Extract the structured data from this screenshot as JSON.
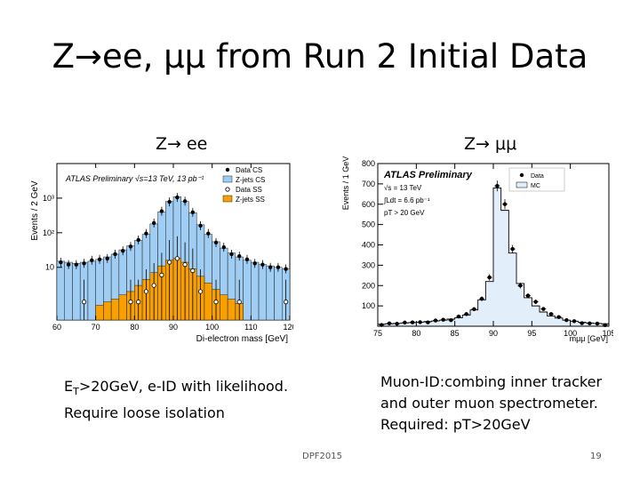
{
  "title": {
    "prefix": "Z",
    "arrow": "→",
    "rest": "ee, μμ from Run 2 Initial Data"
  },
  "left_panel": {
    "subtitle": "Z→ ee"
  },
  "right_panel": {
    "subtitle": "Z→ μμ"
  },
  "text_left": {
    "line1_prefix": "E",
    "line1_sub": "T",
    "line1_rest": ">20GeV, e-ID with likelihood.",
    "line2": "Require loose isolation"
  },
  "text_right": {
    "line1": "Muon-ID:combing inner tracker",
    "line2": "and outer muon spectrometer.",
    "line3": "Required: pT>20GeV"
  },
  "footer": {
    "center": "DPF2015",
    "page": "19"
  },
  "colors": {
    "zjets_cs": "#9fcdf3",
    "zjets_ss": "#f7a000",
    "mc": "#e2effb"
  },
  "chart_data": [
    {
      "type": "bar",
      "ylabel": "Events / 2 GeV",
      "xlabel": "Di-electron mass [GeV]",
      "annotation": "ATLAS Preliminary √s=13 TeV, 13 pb⁻¹",
      "legend": [
        "Data CS",
        "Z-jets CS",
        "Data SS",
        "Z-jets SS"
      ],
      "yscale": "log",
      "xlim": [
        60,
        120
      ],
      "ylim": [
        0.3,
        10000
      ],
      "x_ticks": [
        60,
        70,
        80,
        90,
        100,
        110,
        120
      ],
      "y_ticks": [
        "10",
        "10²",
        "10³"
      ],
      "bin_edges": [
        60,
        62,
        64,
        66,
        68,
        70,
        72,
        74,
        76,
        78,
        80,
        82,
        84,
        86,
        88,
        90,
        92,
        94,
        96,
        98,
        100,
        102,
        104,
        106,
        108,
        110,
        112,
        114,
        116,
        118,
        120
      ],
      "series": [
        {
          "name": "Z-jets CS",
          "values": [
            15,
            14,
            13,
            14,
            15,
            17,
            20,
            24,
            32,
            42,
            60,
            90,
            180,
            400,
            800,
            1100,
            800,
            380,
            170,
            90,
            55,
            36,
            26,
            20,
            16,
            14,
            12,
            11,
            10,
            9
          ]
        },
        {
          "name": "Z-jets SS",
          "values": [
            0,
            0,
            0,
            0,
            0,
            0.8,
            1,
            1.2,
            1.6,
            2,
            3,
            4.5,
            7,
            11,
            16,
            18,
            14,
            9,
            5.5,
            3.5,
            2.3,
            1.6,
            1.2,
            0.9,
            0,
            0,
            0,
            0,
            0,
            0
          ]
        },
        {
          "name": "Data CS",
          "values": [
            14,
            12,
            12,
            13,
            16,
            17,
            18,
            24,
            30,
            40,
            62,
            95,
            190,
            420,
            780,
            1050,
            820,
            390,
            160,
            95,
            52,
            38,
            24,
            21,
            17,
            13,
            12,
            10,
            10,
            9
          ]
        },
        {
          "name": "Data SS",
          "values": [
            null,
            null,
            null,
            1,
            null,
            null,
            null,
            null,
            null,
            1,
            1,
            2,
            3,
            6,
            14,
            18,
            12,
            8,
            2,
            null,
            1,
            null,
            null,
            1,
            null,
            null,
            null,
            null,
            null,
            1
          ]
        }
      ]
    },
    {
      "type": "bar",
      "ylabel": "Events / 1 GeV",
      "xlabel": "mμμ [GeV]",
      "annotation_title": "ATLAS Preliminary",
      "annotation_lines": [
        "√s = 13 TeV",
        "∫Ldt = 6.6 pb⁻¹",
        "pT > 20 GeV"
      ],
      "legend": [
        "Data",
        "MC"
      ],
      "xlim": [
        75,
        105
      ],
      "ylim": [
        0,
        800
      ],
      "x_ticks": [
        75,
        80,
        85,
        90,
        95,
        100,
        105
      ],
      "y_ticks": [
        100,
        200,
        300,
        400,
        500,
        600,
        700,
        800
      ],
      "bin_edges": [
        75,
        76,
        77,
        78,
        79,
        80,
        81,
        82,
        83,
        84,
        85,
        86,
        87,
        88,
        89,
        90,
        91,
        92,
        93,
        94,
        95,
        96,
        97,
        98,
        99,
        100,
        101,
        102,
        103,
        104,
        105
      ],
      "series": [
        {
          "name": "MC",
          "values": [
            10,
            12,
            14,
            16,
            18,
            20,
            23,
            26,
            30,
            35,
            42,
            55,
            80,
            130,
            220,
            680,
            570,
            360,
            210,
            140,
            100,
            70,
            50,
            40,
            30,
            25,
            20,
            16,
            14,
            12
          ]
        },
        {
          "name": "Data",
          "values": [
            6,
            14,
            12,
            18,
            19,
            20,
            19,
            28,
            32,
            30,
            48,
            60,
            84,
            135,
            240,
            690,
            600,
            380,
            200,
            150,
            120,
            85,
            60,
            45,
            30,
            25,
            15,
            14,
            13,
            5
          ]
        }
      ]
    }
  ]
}
